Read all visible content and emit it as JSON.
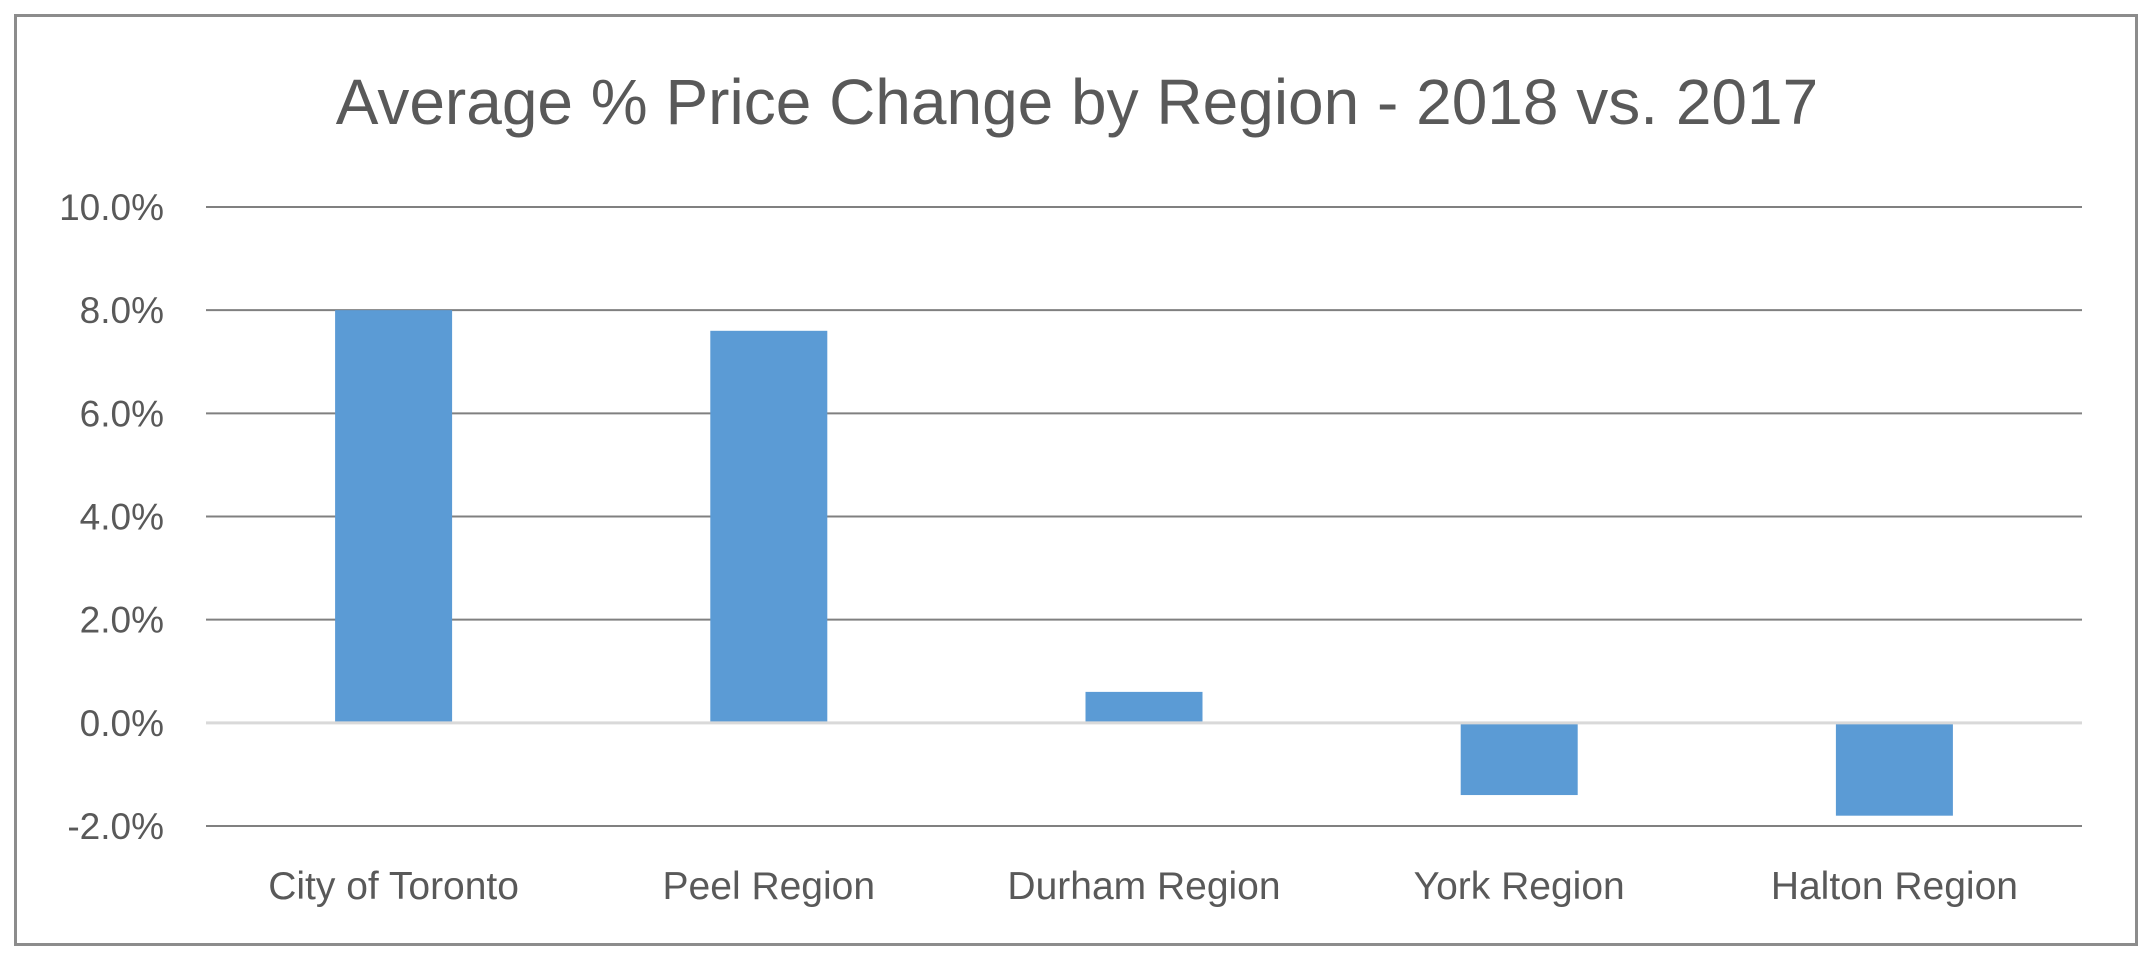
{
  "chart_data": {
    "type": "bar",
    "title": "Average % Price Change by Region - 2018 vs. 2017",
    "xlabel": "",
    "ylabel": "",
    "categories": [
      "City of Toronto",
      "Peel Region",
      "Durham Region",
      "York Region",
      "Halton Region"
    ],
    "values": [
      8.0,
      7.6,
      0.6,
      -1.4,
      -1.8
    ],
    "ylim": [
      -2.0,
      10.0
    ],
    "yticks": [
      10.0,
      8.0,
      6.0,
      4.0,
      2.0,
      0.0,
      -2.0
    ],
    "ytick_labels": [
      "10.0%",
      "8.0%",
      "6.0%",
      "4.0%",
      "2.0%",
      "0.0%",
      "-2.0%"
    ],
    "grid": true,
    "legend": "none",
    "colors": {
      "bar": "#5b9bd5",
      "gridline": "#808080",
      "zero_line": "#d9d9d9",
      "text": "#595959",
      "frame": "#8c8c8c"
    }
  }
}
